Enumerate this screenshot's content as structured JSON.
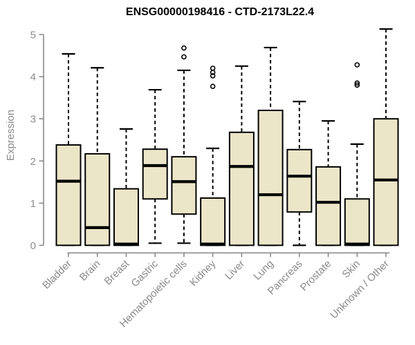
{
  "chart_data": {
    "type": "box",
    "title": "ENSG00000198416 - CTD-2173L22.4",
    "ylabel": "Expression",
    "xlabel": "",
    "ylim": [
      0,
      5
    ],
    "yticks": [
      0,
      1,
      2,
      3,
      4,
      5
    ],
    "grid": false,
    "legend": "none",
    "categories": [
      "Bladder",
      "Brain",
      "Breast",
      "Gastric",
      "Hematopoietic cells",
      "Kidney",
      "Liver",
      "Lung",
      "Pancreas",
      "Prostate",
      "Skin",
      "Unknown / Other"
    ],
    "series": [
      {
        "name": "Bladder",
        "whisker_low": 0,
        "q1": 0,
        "median": 1.52,
        "q3": 2.38,
        "whisker_high": 4.54,
        "outliers": []
      },
      {
        "name": "Brain",
        "whisker_low": 0,
        "q1": 0,
        "median": 0.42,
        "q3": 2.17,
        "whisker_high": 4.21,
        "outliers": []
      },
      {
        "name": "Breast",
        "whisker_low": 0,
        "q1": 0,
        "median": 0.03,
        "q3": 1.34,
        "whisker_high": 2.76,
        "outliers": []
      },
      {
        "name": "Gastric",
        "whisker_low": 0.05,
        "q1": 1.1,
        "median": 1.89,
        "q3": 2.28,
        "whisker_high": 3.69,
        "outliers": []
      },
      {
        "name": "Hematopoietic cells",
        "whisker_low": 0.05,
        "q1": 0.74,
        "median": 1.51,
        "q3": 2.1,
        "whisker_high": 4.15,
        "outliers": [
          4.68,
          4.47
        ]
      },
      {
        "name": "Kidney",
        "whisker_low": 0,
        "q1": 0,
        "median": 0.03,
        "q3": 1.12,
        "whisker_high": 2.3,
        "outliers": [
          4.2,
          4.1,
          4.02,
          3.77
        ]
      },
      {
        "name": "Liver",
        "whisker_low": 0,
        "q1": 0,
        "median": 1.87,
        "q3": 2.68,
        "whisker_high": 4.25,
        "outliers": []
      },
      {
        "name": "Lung",
        "whisker_low": 0,
        "q1": 0,
        "median": 1.2,
        "q3": 3.2,
        "whisker_high": 4.69,
        "outliers": []
      },
      {
        "name": "Pancreas",
        "whisker_low": 0,
        "q1": 0.79,
        "median": 1.64,
        "q3": 2.27,
        "whisker_high": 3.41,
        "outliers": []
      },
      {
        "name": "Prostate",
        "whisker_low": 0,
        "q1": 0,
        "median": 1.02,
        "q3": 1.86,
        "whisker_high": 2.95,
        "outliers": []
      },
      {
        "name": "Skin",
        "whisker_low": 0,
        "q1": 0,
        "median": 0.03,
        "q3": 1.1,
        "whisker_high": 2.4,
        "outliers": [
          4.28,
          3.85,
          3.8
        ]
      },
      {
        "name": "Unknown / Other",
        "whisker_low": 0,
        "q1": 0,
        "median": 1.55,
        "q3": 3.0,
        "whisker_high": 5.13,
        "outliers": []
      }
    ],
    "colors": {
      "background": "#FFFFFF",
      "box_fill": "#ECE6C9",
      "box_stroke": "#000000",
      "median": "#000000",
      "whisker": "#000000",
      "axis": "#848484",
      "tick_label": "#8A8A8A",
      "title": "#000000"
    }
  }
}
